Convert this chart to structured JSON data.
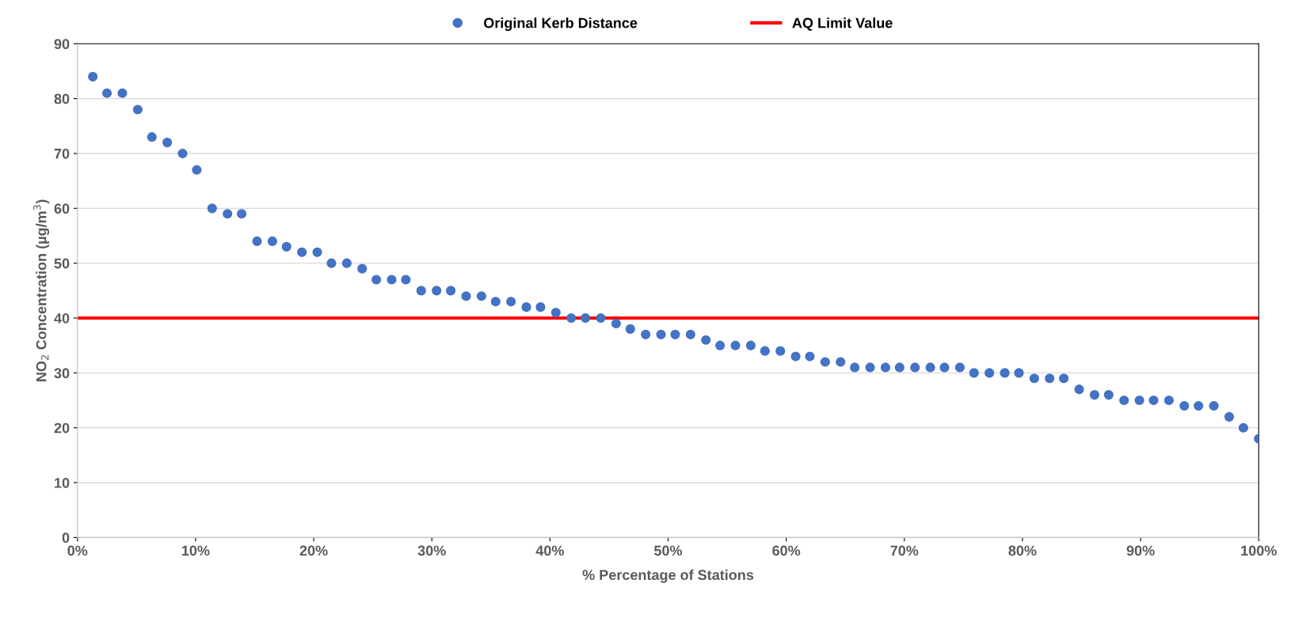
{
  "chart_data": {
    "type": "scatter",
    "xlabel": "% Percentage of Stations",
    "ylabel": "NO$_{2}$ Concentration (µg/m$^{3}$)",
    "x": [
      1.3,
      2.5,
      3.8,
      5.1,
      6.3,
      7.6,
      8.9,
      10.1,
      11.4,
      12.7,
      13.9,
      15.2,
      16.5,
      17.7,
      19.0,
      20.3,
      21.5,
      22.8,
      24.1,
      25.3,
      26.6,
      27.8,
      29.1,
      30.4,
      31.6,
      32.9,
      34.2,
      35.4,
      36.7,
      38.0,
      39.2,
      40.5,
      41.8,
      43.0,
      44.3,
      45.6,
      46.8,
      48.1,
      49.4,
      50.6,
      51.9,
      53.2,
      54.4,
      55.7,
      57.0,
      58.2,
      59.5,
      60.8,
      62.0,
      63.3,
      64.6,
      65.8,
      67.1,
      68.4,
      69.6,
      70.9,
      72.2,
      73.4,
      74.7,
      75.9,
      77.2,
      78.5,
      79.7,
      81.0,
      82.3,
      83.5,
      84.8,
      86.1,
      87.3,
      88.6,
      89.9,
      91.1,
      92.4,
      93.7,
      94.9,
      96.2,
      97.5,
      98.7,
      100
    ],
    "series": [
      {
        "name": "Original Kerb Distance",
        "color": "#4472c4",
        "values": [
          84,
          81,
          81,
          78,
          73,
          72,
          70,
          67,
          60,
          59,
          59,
          54,
          54,
          53,
          52,
          52,
          50,
          50,
          49,
          47,
          47,
          47,
          45,
          45,
          45,
          44,
          44,
          43,
          43,
          42,
          42,
          41,
          40,
          40,
          40,
          39,
          38,
          37,
          37,
          37,
          37,
          36,
          35,
          35,
          35,
          34,
          34,
          33,
          33,
          32,
          32,
          31,
          31,
          31,
          31,
          31,
          31,
          31,
          31,
          30,
          30,
          30,
          30,
          29,
          29,
          29,
          27,
          26,
          26,
          25,
          25,
          25,
          25,
          24,
          24,
          24,
          22,
          20,
          18
        ]
      }
    ],
    "ref_lines": [
      {
        "axis": "y",
        "value": 40,
        "label": "AQ Limit Value",
        "color": "#ff0000"
      }
    ],
    "marker": "circle",
    "grid": "y",
    "legend": "top",
    "xlim": [
      0,
      100
    ],
    "xticks": [
      {
        "value": 0,
        "label": "0%"
      },
      {
        "value": 10,
        "label": "10%"
      },
      {
        "value": 20,
        "label": "20%"
      },
      {
        "value": 30,
        "label": "30%"
      },
      {
        "value": 40,
        "label": "40%"
      },
      {
        "value": 50,
        "label": "50%"
      },
      {
        "value": 60,
        "label": "60%"
      },
      {
        "value": 70,
        "label": "70%"
      },
      {
        "value": 80,
        "label": "80%"
      },
      {
        "value": 90,
        "label": "90%"
      },
      {
        "value": 100,
        "label": "100%"
      }
    ],
    "ylim": [
      0,
      90
    ],
    "yticks": [
      0,
      10,
      20,
      30,
      40,
      50,
      60,
      70,
      80,
      90
    ]
  }
}
